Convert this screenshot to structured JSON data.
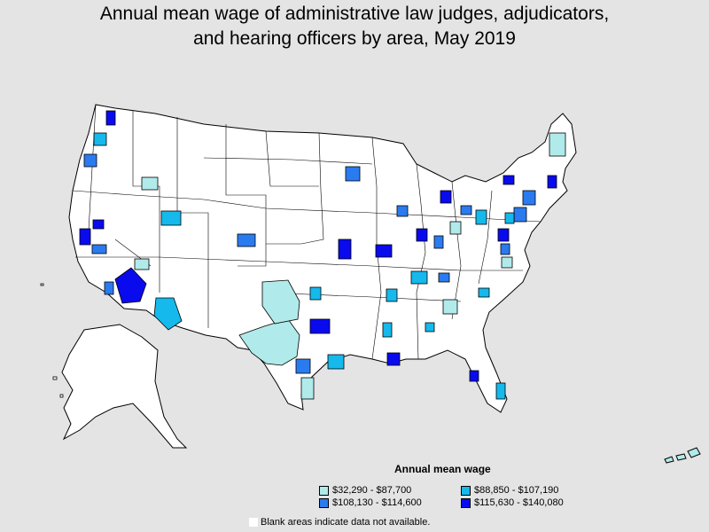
{
  "title_line1": "Annual mean wage of administrative law judges, adjudicators,",
  "title_line2": "and hearing officers by area, May 2019",
  "legend": {
    "title": "Annual mean wage",
    "items": [
      {
        "label": "$32,290 - $87,700",
        "color": "#b1eaea"
      },
      {
        "label": "$88,850 - $107,190",
        "color": "#15b9ec"
      },
      {
        "label": "$108,130 - $114,600",
        "color": "#2b7bf0"
      },
      {
        "label": "$115,630 - $140,080",
        "color": "#0a0aee"
      }
    ]
  },
  "note": "Blank areas indicate data not available.",
  "colors": {
    "background": "#e4e4e4",
    "blank": "#ffffff",
    "border": "#000000"
  }
}
